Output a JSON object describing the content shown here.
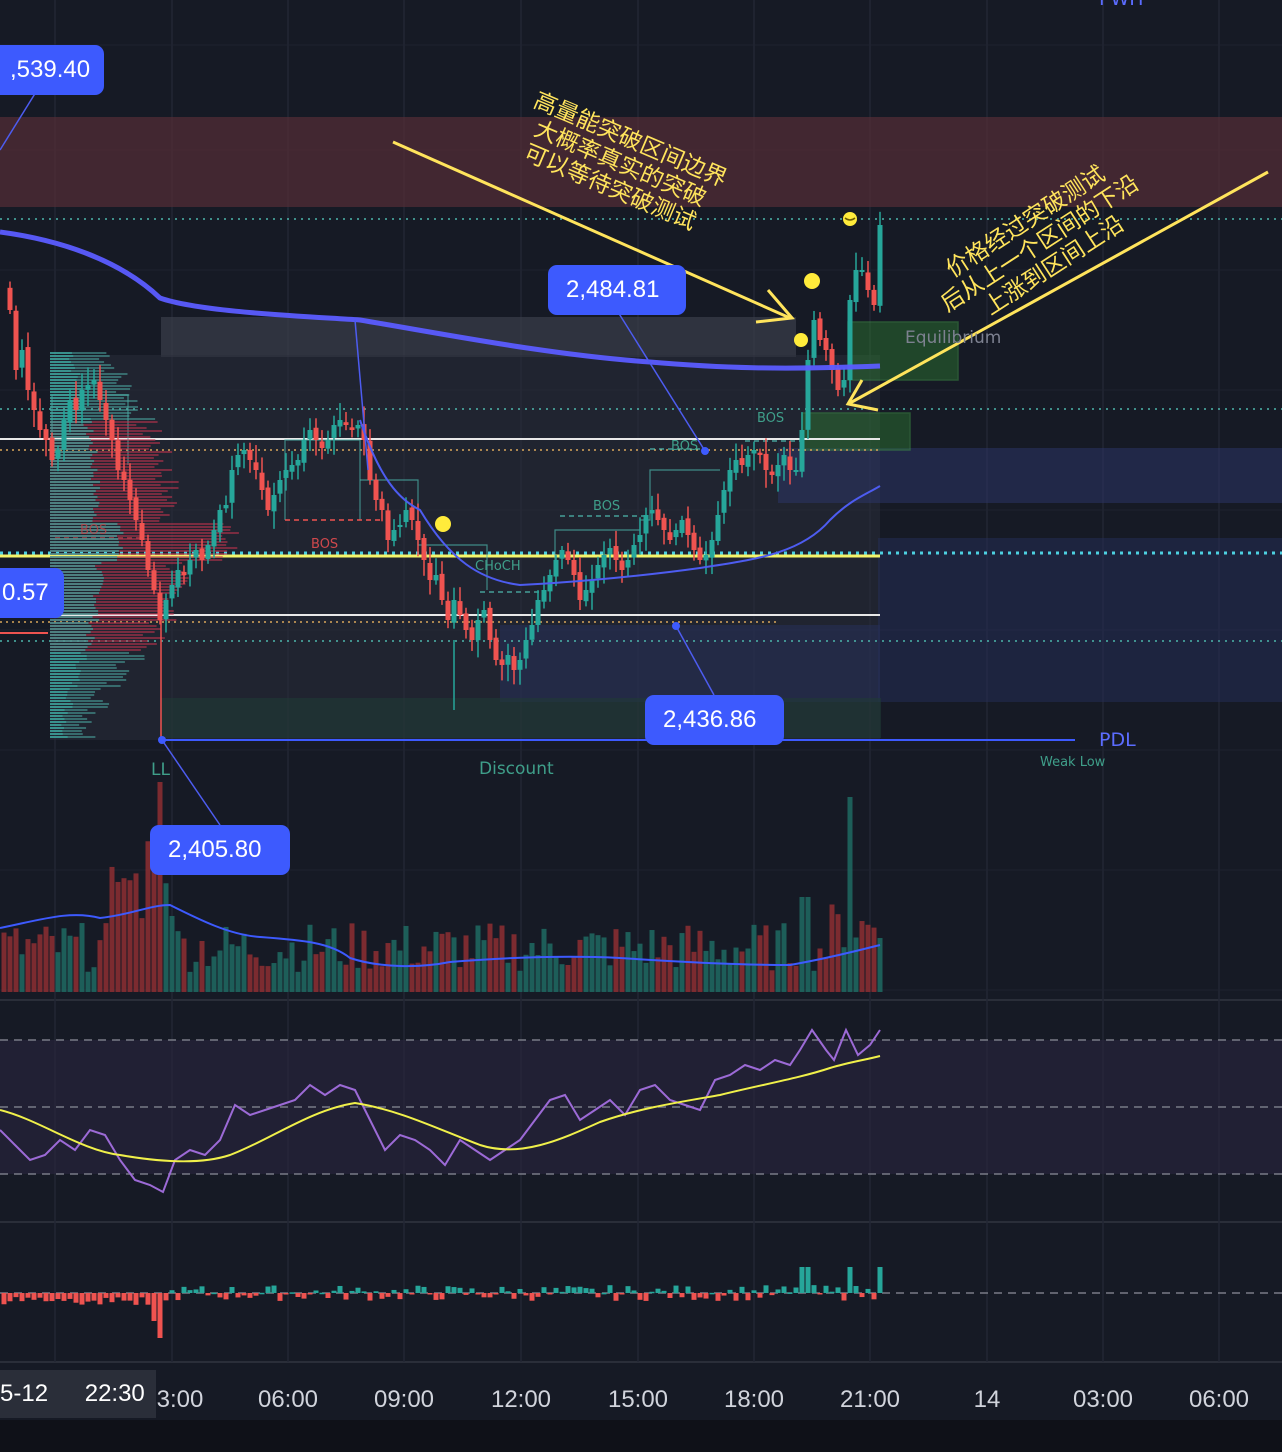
{
  "chart_data": {
    "type": "candlestick",
    "price_tags": [
      {
        "id": "tag-2539",
        "text": ",539.40"
      },
      {
        "id": "tag-2484",
        "text": "2,484.81"
      },
      {
        "id": "tag-2457",
        "text": "0.57"
      },
      {
        "id": "tag-2436",
        "text": "2,436.86"
      },
      {
        "id": "tag-2405",
        "text": "2,405.80"
      }
    ],
    "structure_labels": {
      "bos": "BOS",
      "choch": "CHoCH",
      "ll": "LL",
      "discount": "Discount",
      "equilibrium": "Equilibrium",
      "pdl": "PDL",
      "weak_low": "Weak Low",
      "pwh": "PWH"
    },
    "annotations": {
      "top": [
        "高量能突破区间边界",
        "大概率真实的突破",
        "可以等待突破测试"
      ],
      "right": [
        "价格经过突破测试",
        "后从上一个区间的下沿",
        "上涨到区间上沿"
      ]
    },
    "x_axis": {
      "date_label": "5-12",
      "time_label": "22:30",
      "ticks": [
        "3:00",
        "06:00",
        "09:00",
        "12:00",
        "15:00",
        "18:00",
        "21:00",
        "14",
        "03:00",
        "06:00"
      ]
    },
    "colors": {
      "up": "#26a69a",
      "down": "#ef5350",
      "tag": "#3d5afe",
      "annotation": "#ffe45c",
      "vwap": "#5b5cff",
      "rsi": "#9c6ad6",
      "rsi_ma": "#f0f04a"
    }
  }
}
